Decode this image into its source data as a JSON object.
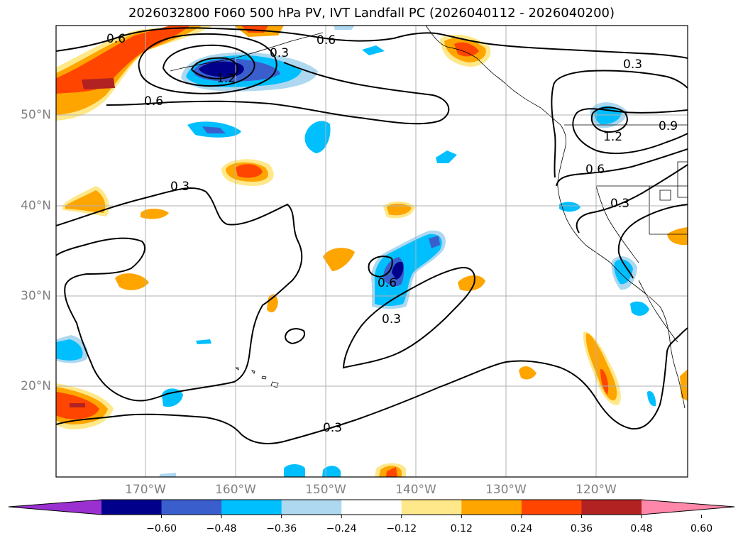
{
  "title": "2026032800 F060 500 hPa PV, IVT Landfall PC (2026040112 - 2026040200)",
  "lat_labels": [
    "50°N",
    "40°N",
    "30°N",
    "20°N"
  ],
  "lon_labels": [
    "170°W",
    "160°W",
    "150°W",
    "140°W",
    "130°W",
    "120°W"
  ],
  "contour_labels": [
    "0.6",
    "0.6",
    "0.6",
    "1.2",
    "0.3",
    "0.3",
    "0.6",
    "0.3",
    "0.3",
    "0.3",
    "0.9",
    "1.2",
    "0.6",
    "0.3"
  ],
  "colorbar": {
    "colors": [
      "#9b30d0",
      "#00008b",
      "#3a5fcd",
      "#00bfff",
      "#add8f0",
      "#ffffff",
      "#ffe88a",
      "#ffa500",
      "#ff4500",
      "#b22222",
      "#ff88aa"
    ],
    "ticks": [
      "−0.60",
      "−0.48",
      "−0.36",
      "−0.24",
      "−0.12",
      "0.12",
      "0.24",
      "0.36",
      "0.48",
      "0.60"
    ]
  }
}
